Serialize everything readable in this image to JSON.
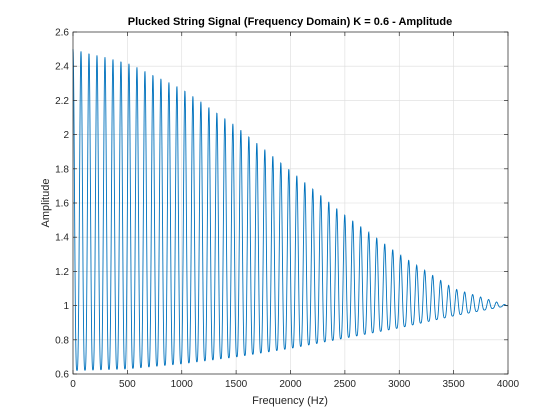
{
  "chart_data": {
    "type": "line",
    "title": "Plucked String Signal (Frequency Domain) K = 0.6 - Amplitude",
    "xlabel": "Frequency (Hz)",
    "ylabel": "Amplitude",
    "xlim": [
      0,
      4000
    ],
    "ylim": [
      0.6,
      2.6
    ],
    "xticks": [
      0,
      500,
      1000,
      1500,
      2000,
      2500,
      3000,
      3500,
      4000
    ],
    "yticks": [
      0.6,
      0.8,
      1.0,
      1.2,
      1.4,
      1.6,
      1.8,
      2.0,
      2.2,
      2.4,
      2.6
    ],
    "xtick_labels": [
      "0",
      "500",
      "1000",
      "1500",
      "2000",
      "2500",
      "3000",
      "3500",
      "4000"
    ],
    "ytick_labels": [
      "0.6",
      "0.8",
      "1",
      "1.2",
      "1.4",
      "1.6",
      "1.8",
      "2",
      "2.2",
      "2.4",
      "2.6"
    ],
    "grid": true,
    "box": true,
    "series_color": "#0072BD",
    "series": [
      {
        "peak_spacing_hz": 73.5,
        "num_peaks": 55,
        "peak_envelope": {
          "x": [
            0,
            500,
            1000,
            1500,
            2000,
            2500,
            3000,
            3500,
            4000
          ],
          "y": [
            2.5,
            2.42,
            2.27,
            2.05,
            1.79,
            1.53,
            1.3,
            1.1,
            1.0
          ]
        },
        "trough_envelope": {
          "x": [
            0,
            500,
            1000,
            1500,
            2000,
            2500,
            3000,
            3500,
            4000
          ],
          "y": [
            0.62,
            0.63,
            0.66,
            0.7,
            0.75,
            0.81,
            0.87,
            0.94,
            1.0
          ]
        }
      }
    ]
  }
}
